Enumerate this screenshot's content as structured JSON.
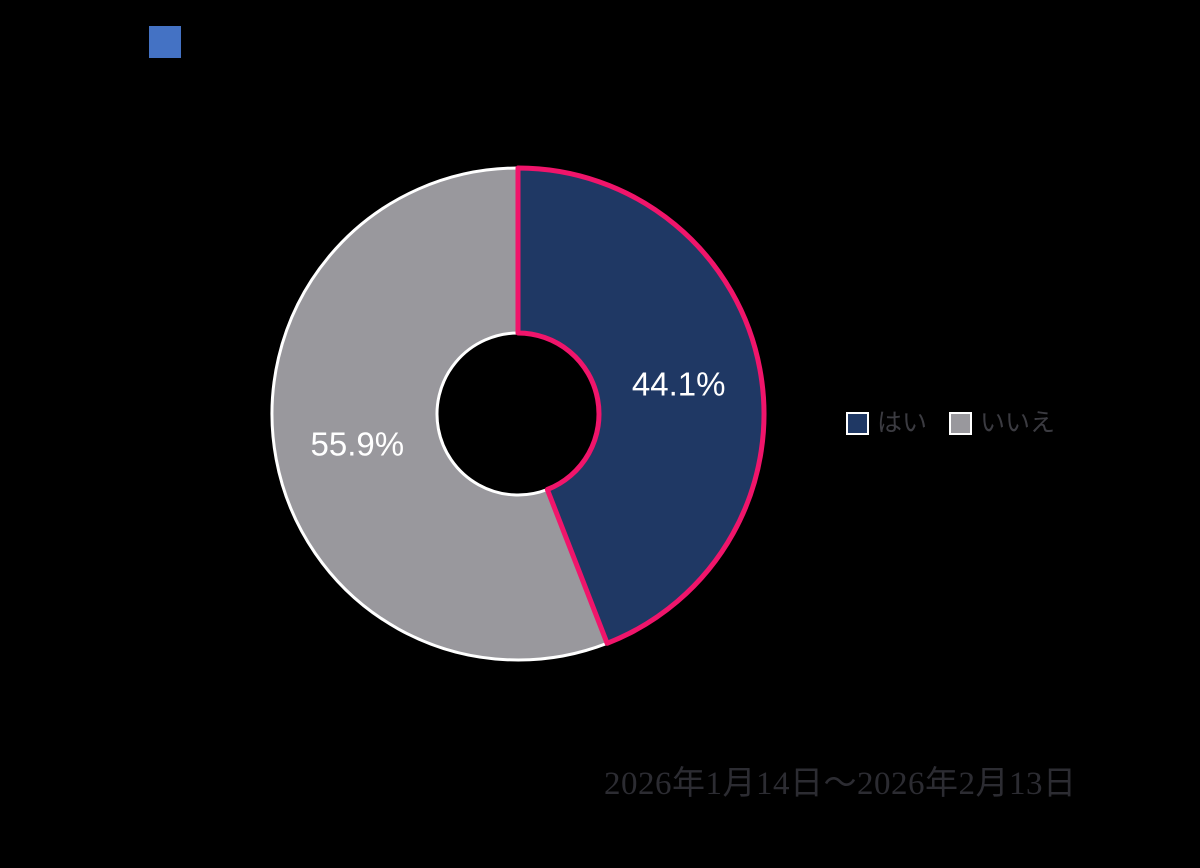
{
  "page": {
    "background_color": "#000000"
  },
  "title_marker": {
    "color": "#4472C4"
  },
  "chart_data": {
    "type": "pie",
    "subtype": "doughnut",
    "labels": [
      "はい",
      "いいえ"
    ],
    "values": [
      44.1,
      55.9
    ],
    "data_labels": [
      "44.1%",
      "55.9%"
    ],
    "colors": [
      "#1F3864",
      "#99989D"
    ],
    "border_colors": [
      "#F0156B",
      "#FFFFFF"
    ],
    "border_widths": [
      5,
      3
    ],
    "start_angle_deg": 0,
    "direction": "clockwise",
    "hole_ratio": 0.33,
    "data_label_color": "#FFFFFF",
    "legend_position": "right",
    "legend_text_color": "#3B3B41"
  },
  "legend": {
    "text_color": "#3B3B41",
    "items": [
      {
        "label": "はい",
        "color": "#1F3864"
      },
      {
        "label": "いいえ",
        "color": "#99989D"
      }
    ]
  },
  "footer": {
    "date_range": "2026年1月14日～2026年2月13日",
    "color": "#2C2C32"
  }
}
